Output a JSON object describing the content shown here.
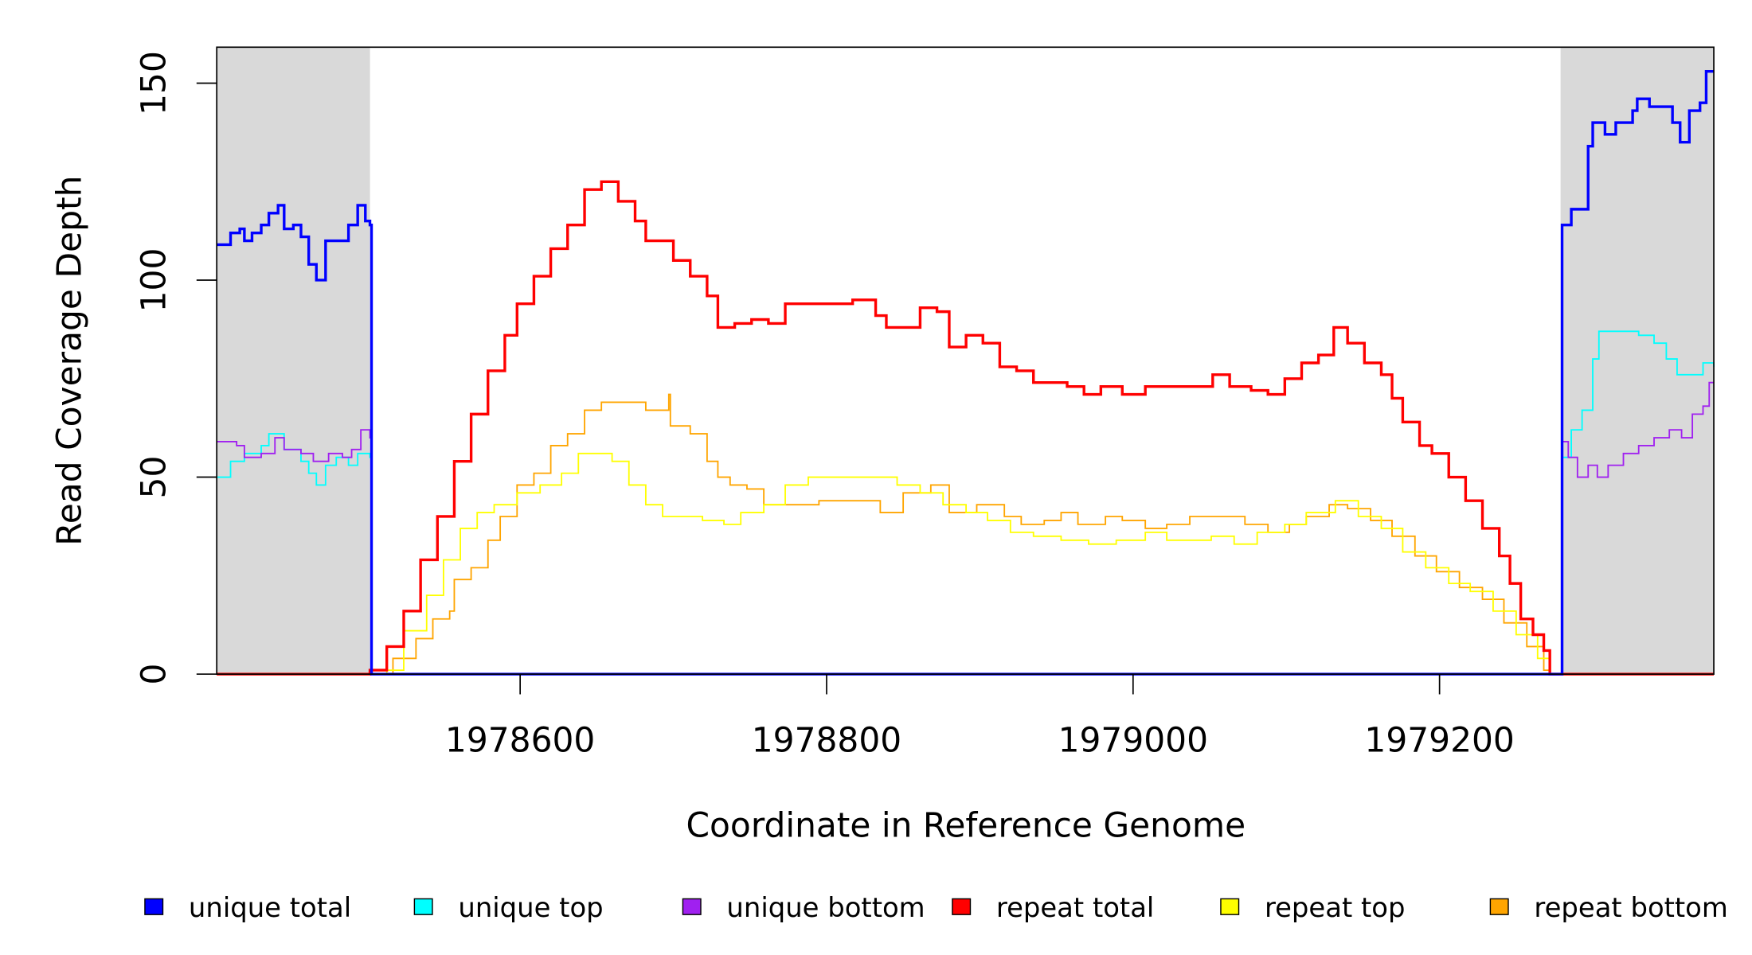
{
  "chart_data": {
    "type": "line",
    "title": "",
    "xlabel": "Coordinate in Reference Genome",
    "ylabel": "Read Coverage Depth",
    "xlim": [
      1978402,
      1979379
    ],
    "ylim": [
      0,
      159
    ],
    "xticks": [
      1978600,
      1978800,
      1979000,
      1979200
    ],
    "xtick_labels": [
      "1978600",
      "1978800",
      "1979000",
      "1979200"
    ],
    "yticks": [
      0,
      50,
      100,
      150
    ],
    "ytick_labels": [
      "0",
      "50",
      "100",
      "150"
    ],
    "grid": false,
    "legend_placement": "bottom",
    "shaded_regions": [
      [
        1978402,
        1978502
      ],
      [
        1979279,
        1979379
      ]
    ],
    "shade_color": "#d9d9d9",
    "series": [
      {
        "name": "repeat bottom",
        "color": "#ffa500",
        "width": 1.3,
        "points": [
          [
            1978402,
            0
          ],
          [
            1978502,
            0
          ],
          [
            1978517,
            4
          ],
          [
            1978532,
            9
          ],
          [
            1978543,
            14
          ],
          [
            1978554,
            16
          ],
          [
            1978557,
            24
          ],
          [
            1978568,
            27
          ],
          [
            1978579,
            34
          ],
          [
            1978587,
            40
          ],
          [
            1978598,
            48
          ],
          [
            1978609,
            51
          ],
          [
            1978620,
            58
          ],
          [
            1978631,
            61
          ],
          [
            1978642,
            67
          ],
          [
            1978653,
            69
          ],
          [
            1978667,
            69
          ],
          [
            1978682,
            67
          ],
          [
            1978697,
            71
          ],
          [
            1978698,
            63
          ],
          [
            1978711,
            61
          ],
          [
            1978722,
            54
          ],
          [
            1978729,
            50
          ],
          [
            1978737,
            48
          ],
          [
            1978748,
            47
          ],
          [
            1978759,
            43
          ],
          [
            1978773,
            43
          ],
          [
            1978795,
            44
          ],
          [
            1978817,
            44
          ],
          [
            1978835,
            41
          ],
          [
            1978850,
            46
          ],
          [
            1978868,
            48
          ],
          [
            1978880,
            41
          ],
          [
            1978898,
            43
          ],
          [
            1978916,
            40
          ],
          [
            1978927,
            38
          ],
          [
            1978942,
            39
          ],
          [
            1978953,
            41
          ],
          [
            1978964,
            38
          ],
          [
            1978982,
            40
          ],
          [
            1978993,
            39
          ],
          [
            1979008,
            37
          ],
          [
            1979022,
            38
          ],
          [
            1979037,
            40
          ],
          [
            1979059,
            40
          ],
          [
            1979073,
            38
          ],
          [
            1979088,
            36
          ],
          [
            1979102,
            38
          ],
          [
            1979113,
            40
          ],
          [
            1979128,
            43
          ],
          [
            1979140,
            42
          ],
          [
            1979155,
            39
          ],
          [
            1979169,
            35
          ],
          [
            1979184,
            30
          ],
          [
            1979198,
            26
          ],
          [
            1979213,
            22
          ],
          [
            1979228,
            19
          ],
          [
            1979242,
            13
          ],
          [
            1979257,
            7
          ],
          [
            1979268,
            1
          ],
          [
            1979272,
            0
          ],
          [
            1979379,
            0
          ]
        ]
      },
      {
        "name": "repeat top",
        "color": "#ffff00",
        "width": 1.3,
        "points": [
          [
            1978402,
            0
          ],
          [
            1978502,
            0
          ],
          [
            1978513,
            1
          ],
          [
            1978524,
            11
          ],
          [
            1978539,
            20
          ],
          [
            1978550,
            29
          ],
          [
            1978561,
            37
          ],
          [
            1978572,
            41
          ],
          [
            1978583,
            43
          ],
          [
            1978598,
            46
          ],
          [
            1978613,
            48
          ],
          [
            1978627,
            51
          ],
          [
            1978638,
            56
          ],
          [
            1978649,
            56
          ],
          [
            1978660,
            54
          ],
          [
            1978671,
            48
          ],
          [
            1978682,
            43
          ],
          [
            1978693,
            40
          ],
          [
            1978704,
            40
          ],
          [
            1978719,
            39
          ],
          [
            1978733,
            38
          ],
          [
            1978744,
            41
          ],
          [
            1978759,
            43
          ],
          [
            1978773,
            48
          ],
          [
            1978788,
            50
          ],
          [
            1978810,
            50
          ],
          [
            1978832,
            50
          ],
          [
            1978846,
            48
          ],
          [
            1978861,
            46
          ],
          [
            1978876,
            43
          ],
          [
            1978891,
            41
          ],
          [
            1978905,
            39
          ],
          [
            1978920,
            36
          ],
          [
            1978935,
            35
          ],
          [
            1978953,
            34
          ],
          [
            1978971,
            33
          ],
          [
            1978989,
            34
          ],
          [
            1979008,
            36
          ],
          [
            1979022,
            34
          ],
          [
            1979037,
            34
          ],
          [
            1979051,
            35
          ],
          [
            1979066,
            33
          ],
          [
            1979081,
            36
          ],
          [
            1979099,
            38
          ],
          [
            1979113,
            41
          ],
          [
            1979132,
            44
          ],
          [
            1979147,
            40
          ],
          [
            1979162,
            37
          ],
          [
            1979176,
            31
          ],
          [
            1979191,
            27
          ],
          [
            1979206,
            23
          ],
          [
            1979220,
            21
          ],
          [
            1979235,
            16
          ],
          [
            1979250,
            10
          ],
          [
            1979264,
            4
          ],
          [
            1979272,
            0
          ],
          [
            1979379,
            0
          ]
        ]
      },
      {
        "name": "repeat total",
        "color": "#ff0000",
        "width": 2.4,
        "points": [
          [
            1978402,
            0
          ],
          [
            1978502,
            1
          ],
          [
            1978513,
            7
          ],
          [
            1978524,
            16
          ],
          [
            1978535,
            29
          ],
          [
            1978546,
            40
          ],
          [
            1978557,
            54
          ],
          [
            1978568,
            66
          ],
          [
            1978579,
            77
          ],
          [
            1978590,
            86
          ],
          [
            1978598,
            94
          ],
          [
            1978609,
            101
          ],
          [
            1978620,
            108
          ],
          [
            1978631,
            114
          ],
          [
            1978642,
            123
          ],
          [
            1978653,
            125
          ],
          [
            1978664,
            120
          ],
          [
            1978675,
            115
          ],
          [
            1978682,
            110
          ],
          [
            1978693,
            110
          ],
          [
            1978700,
            105
          ],
          [
            1978711,
            101
          ],
          [
            1978722,
            96
          ],
          [
            1978729,
            88
          ],
          [
            1978740,
            89
          ],
          [
            1978751,
            90
          ],
          [
            1978762,
            89
          ],
          [
            1978773,
            94
          ],
          [
            1978799,
            94
          ],
          [
            1978817,
            95
          ],
          [
            1978832,
            91
          ],
          [
            1978839,
            88
          ],
          [
            1978850,
            88
          ],
          [
            1978861,
            93
          ],
          [
            1978872,
            92
          ],
          [
            1978880,
            83
          ],
          [
            1978891,
            86
          ],
          [
            1978902,
            84
          ],
          [
            1978913,
            78
          ],
          [
            1978924,
            77
          ],
          [
            1978935,
            74
          ],
          [
            1978957,
            73
          ],
          [
            1978968,
            71
          ],
          [
            1978979,
            73
          ],
          [
            1978993,
            71
          ],
          [
            1979008,
            73
          ],
          [
            1979037,
            73
          ],
          [
            1979052,
            76
          ],
          [
            1979063,
            73
          ],
          [
            1979077,
            72
          ],
          [
            1979088,
            71
          ],
          [
            1979099,
            75
          ],
          [
            1979110,
            79
          ],
          [
            1979121,
            81
          ],
          [
            1979131,
            88
          ],
          [
            1979140,
            84
          ],
          [
            1979151,
            79
          ],
          [
            1979162,
            76
          ],
          [
            1979169,
            70
          ],
          [
            1979176,
            64
          ],
          [
            1979187,
            58
          ],
          [
            1979195,
            56
          ],
          [
            1979206,
            50
          ],
          [
            1979217,
            44
          ],
          [
            1979228,
            37
          ],
          [
            1979239,
            30
          ],
          [
            1979246,
            23
          ],
          [
            1979253,
            14
          ],
          [
            1979261,
            10
          ],
          [
            1979268,
            6
          ],
          [
            1979272,
            0
          ],
          [
            1979379,
            0
          ]
        ]
      },
      {
        "name": "unique top",
        "color": "#00ffff",
        "width": 1.3,
        "points": [
          [
            1978402,
            50
          ],
          [
            1978411,
            54
          ],
          [
            1978420,
            56
          ],
          [
            1978431,
            58
          ],
          [
            1978436,
            61
          ],
          [
            1978446,
            57
          ],
          [
            1978457,
            54
          ],
          [
            1978462,
            51
          ],
          [
            1978467,
            48
          ],
          [
            1978473,
            53
          ],
          [
            1978480,
            55
          ],
          [
            1978488,
            53
          ],
          [
            1978494,
            56
          ],
          [
            1978502,
            55
          ],
          [
            1978503,
            0
          ],
          [
            1979279,
            0
          ],
          [
            1979280,
            55
          ],
          [
            1979286,
            62
          ],
          [
            1979293,
            67
          ],
          [
            1979300,
            80
          ],
          [
            1979304,
            87
          ],
          [
            1979315,
            87
          ],
          [
            1979330,
            86
          ],
          [
            1979340,
            84
          ],
          [
            1979348,
            80
          ],
          [
            1979355,
            76
          ],
          [
            1979368,
            76
          ],
          [
            1979372,
            79
          ],
          [
            1979379,
            78
          ]
        ]
      },
      {
        "name": "unique bottom",
        "color": "#a020f0",
        "width": 1.3,
        "points": [
          [
            1978402,
            59
          ],
          [
            1978415,
            58
          ],
          [
            1978420,
            55
          ],
          [
            1978431,
            56
          ],
          [
            1978440,
            60
          ],
          [
            1978446,
            57
          ],
          [
            1978457,
            56
          ],
          [
            1978465,
            54
          ],
          [
            1978475,
            56
          ],
          [
            1978484,
            55
          ],
          [
            1978490,
            57
          ],
          [
            1978496,
            62
          ],
          [
            1978502,
            60
          ],
          [
            1978503,
            0
          ],
          [
            1979279,
            0
          ],
          [
            1979280,
            59
          ],
          [
            1979284,
            55
          ],
          [
            1979290,
            50
          ],
          [
            1979297,
            53
          ],
          [
            1979303,
            50
          ],
          [
            1979310,
            53
          ],
          [
            1979320,
            56
          ],
          [
            1979330,
            58
          ],
          [
            1979340,
            60
          ],
          [
            1979350,
            62
          ],
          [
            1979358,
            60
          ],
          [
            1979365,
            66
          ],
          [
            1979372,
            68
          ],
          [
            1979376,
            74
          ],
          [
            1979379,
            74
          ]
        ]
      },
      {
        "name": "unique total",
        "color": "#0000ff",
        "width": 2.4,
        "points": [
          [
            1978402,
            109
          ],
          [
            1978411,
            112
          ],
          [
            1978417,
            113
          ],
          [
            1978420,
            110
          ],
          [
            1978425,
            112
          ],
          [
            1978431,
            114
          ],
          [
            1978436,
            117
          ],
          [
            1978442,
            119
          ],
          [
            1978446,
            113
          ],
          [
            1978452,
            114
          ],
          [
            1978457,
            111
          ],
          [
            1978462,
            104
          ],
          [
            1978467,
            100
          ],
          [
            1978473,
            110
          ],
          [
            1978480,
            110
          ],
          [
            1978488,
            114
          ],
          [
            1978494,
            119
          ],
          [
            1978499,
            115
          ],
          [
            1978502,
            114
          ],
          [
            1978503,
            0
          ],
          [
            1979279,
            0
          ],
          [
            1979280,
            114
          ],
          [
            1979286,
            118
          ],
          [
            1979293,
            118
          ],
          [
            1979297,
            134
          ],
          [
            1979300,
            140
          ],
          [
            1979308,
            137
          ],
          [
            1979315,
            140
          ],
          [
            1979326,
            143
          ],
          [
            1979329,
            146
          ],
          [
            1979337,
            144
          ],
          [
            1979345,
            144
          ],
          [
            1979352,
            140
          ],
          [
            1979357,
            135
          ],
          [
            1979363,
            143
          ],
          [
            1979370,
            145
          ],
          [
            1979374,
            153
          ],
          [
            1979379,
            153
          ]
        ]
      }
    ],
    "legend": [
      {
        "label": "unique total",
        "color": "#0000ff"
      },
      {
        "label": "unique top",
        "color": "#00ffff"
      },
      {
        "label": "unique bottom",
        "color": "#a020f0"
      },
      {
        "label": "repeat total",
        "color": "#ff0000"
      },
      {
        "label": "repeat top",
        "color": "#ffff00"
      },
      {
        "label": "repeat bottom",
        "color": "#ffa500"
      }
    ]
  }
}
